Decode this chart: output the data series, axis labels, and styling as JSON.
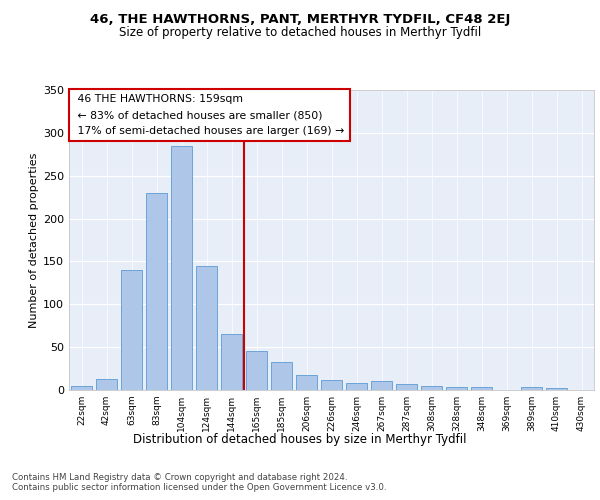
{
  "title1": "46, THE HAWTHORNS, PANT, MERTHYR TYDFIL, CF48 2EJ",
  "title2": "Size of property relative to detached houses in Merthyr Tydfil",
  "xlabel": "Distribution of detached houses by size in Merthyr Tydfil",
  "ylabel": "Number of detached properties",
  "property_label": "46 THE HAWTHORNS: 159sqm",
  "pct_smaller": 83,
  "n_smaller": 850,
  "pct_larger_semi": 17,
  "n_larger_semi": 169,
  "bin_labels": [
    "22sqm",
    "42sqm",
    "63sqm",
    "83sqm",
    "104sqm",
    "124sqm",
    "144sqm",
    "165sqm",
    "185sqm",
    "206sqm",
    "226sqm",
    "246sqm",
    "267sqm",
    "287sqm",
    "308sqm",
    "328sqm",
    "348sqm",
    "369sqm",
    "389sqm",
    "410sqm",
    "430sqm"
  ],
  "bar_values": [
    5,
    13,
    140,
    230,
    285,
    145,
    65,
    45,
    33,
    18,
    12,
    8,
    10,
    7,
    5,
    4,
    4,
    0,
    4,
    2,
    0
  ],
  "bar_color": "#aec6e8",
  "bar_edge_color": "#5b9bd5",
  "annotation_box_edge": "#cc0000",
  "bg_color": "#e8eef8",
  "footer": "Contains HM Land Registry data © Crown copyright and database right 2024.\nContains public sector information licensed under the Open Government Licence v3.0.",
  "ylim": [
    0,
    350
  ],
  "yticks": [
    0,
    50,
    100,
    150,
    200,
    250,
    300,
    350
  ]
}
